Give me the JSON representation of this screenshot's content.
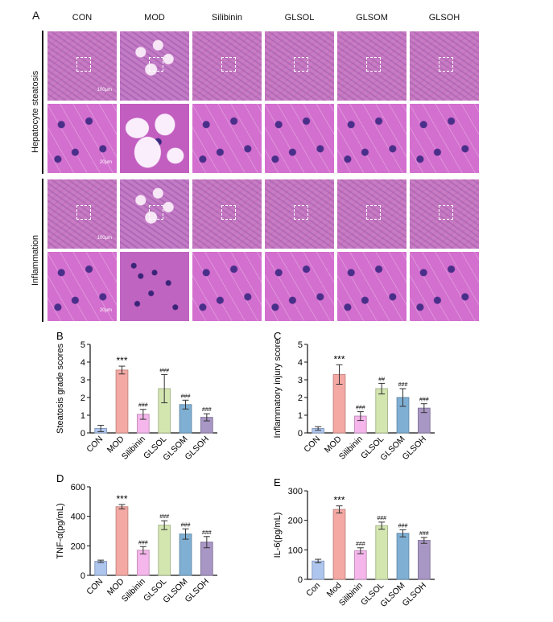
{
  "figure": {
    "panel_a_label": "A",
    "columns": [
      "CON",
      "MOD",
      "Silibinin",
      "GLSOL",
      "GLSOM",
      "GLSOH"
    ],
    "rows": [
      "Hepatocyte steatosis",
      "Inflammation"
    ],
    "scale_labels": [
      "100μm",
      "20μm",
      "100μm",
      "20μm"
    ]
  },
  "colors": {
    "CON": "#aec6ee",
    "MOD": "#f5a9a4",
    "Silibinin": "#f5b6ec",
    "GLSOL": "#d3e6b0",
    "GLSOM": "#7fb0d4",
    "GLSOH": "#a896c4"
  },
  "chart_data": [
    {
      "panel": "B",
      "type": "bar",
      "categories": [
        "CON",
        "MOD",
        "Silibinin",
        "GLSOL",
        "GLSOM",
        "GLSOH"
      ],
      "values": [
        0.25,
        3.55,
        1.05,
        2.5,
        1.6,
        0.88
      ],
      "errors": [
        0.18,
        0.22,
        0.28,
        0.8,
        0.25,
        0.2
      ],
      "annotations": [
        "",
        "***",
        "###",
        "###",
        "###",
        "###"
      ],
      "ylabel": "Steatosis grade scores",
      "ylim": [
        0,
        5
      ],
      "yticks": [
        0,
        1,
        2,
        3,
        4,
        5
      ]
    },
    {
      "panel": "C",
      "type": "bar",
      "categories": [
        "CON",
        "MOD",
        "Silibinin",
        "GLSOL",
        "GLSOM",
        "GLSOH"
      ],
      "values": [
        0.25,
        3.3,
        0.95,
        2.5,
        2.0,
        1.4
      ],
      "errors": [
        0.1,
        0.55,
        0.25,
        0.3,
        0.5,
        0.25
      ],
      "annotations": [
        "",
        "***",
        "###",
        "##",
        "###",
        "###"
      ],
      "ylabel": "Inflammatory injury score",
      "ylim": [
        0,
        5
      ],
      "yticks": [
        0,
        1,
        2,
        3,
        4,
        5
      ]
    },
    {
      "panel": "D",
      "type": "bar",
      "categories": [
        "CON",
        "MOD",
        "Silibinin",
        "GLSOL",
        "GLSOM",
        "GLSOH"
      ],
      "values": [
        95,
        465,
        170,
        340,
        280,
        225
      ],
      "errors": [
        8,
        15,
        25,
        30,
        35,
        38
      ],
      "annotations": [
        "",
        "***",
        "###",
        "###",
        "###",
        "###"
      ],
      "ylabel": "TNF-α(pg/mL)",
      "ylim": [
        0,
        600
      ],
      "yticks": [
        0,
        200,
        400,
        600
      ]
    },
    {
      "panel": "E",
      "type": "bar",
      "categories": [
        "Con",
        "Mod",
        "Silibinin",
        "GLSOL",
        "GLSOM",
        "GLSOH"
      ],
      "values": [
        62,
        237,
        97,
        182,
        156,
        132
      ],
      "errors": [
        6,
        12,
        10,
        12,
        12,
        10
      ],
      "annotations": [
        "",
        "***",
        "###",
        "###",
        "###",
        "###"
      ],
      "ylabel": "IL-6(pg/mL)",
      "ylim": [
        0,
        300
      ],
      "yticks": [
        0,
        100,
        200,
        300
      ]
    }
  ]
}
